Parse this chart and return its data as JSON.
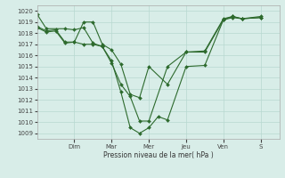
{
  "background_color": "#d8ede8",
  "grid_color": "#b8d8d0",
  "line_color": "#2d6a2d",
  "marker_color": "#2d6a2d",
  "xlabel": "Pression niveau de la mer( hPa )",
  "ylim": [
    1008.5,
    1020.5
  ],
  "yticks": [
    1009,
    1010,
    1011,
    1012,
    1013,
    1014,
    1015,
    1016,
    1017,
    1018,
    1019,
    1020
  ],
  "day_labels": [
    "Dim",
    "Mar",
    "Mer",
    "Jeu",
    "Ven",
    "S"
  ],
  "day_positions": [
    2,
    4,
    6,
    8,
    10,
    12
  ],
  "xlim": [
    0,
    13
  ],
  "series1_x": [
    0.0,
    0.5,
    1.5,
    2.0,
    2.5,
    3.0,
    3.5,
    4.0,
    4.5,
    5.0,
    5.5,
    6.0,
    6.5,
    7.0,
    8.0,
    9.0,
    10.0,
    10.5,
    11.0,
    12.0
  ],
  "series1_y": [
    1019.7,
    1018.4,
    1018.4,
    1018.3,
    1018.5,
    1017.1,
    1016.8,
    1015.5,
    1012.7,
    1009.5,
    1009.0,
    1009.5,
    1010.5,
    1010.2,
    1015.0,
    1015.1,
    1019.2,
    1019.4,
    1019.3,
    1019.4
  ],
  "series2_x": [
    0.0,
    0.5,
    1.0,
    1.5,
    2.0,
    2.5,
    3.0,
    3.5,
    4.0,
    4.5,
    5.0,
    5.5,
    6.0,
    7.0,
    8.0,
    9.0,
    10.0,
    10.5,
    11.0,
    12.0
  ],
  "series2_y": [
    1018.5,
    1018.1,
    1018.2,
    1017.1,
    1017.2,
    1019.0,
    1019.0,
    1017.0,
    1016.5,
    1015.2,
    1012.5,
    1012.2,
    1015.0,
    1013.4,
    1016.3,
    1016.4,
    1019.3,
    1019.5,
    1019.3,
    1019.5
  ],
  "series3_x": [
    0.0,
    0.5,
    1.0,
    1.5,
    2.0,
    2.5,
    3.0,
    3.5,
    4.0,
    4.5,
    5.0,
    5.5,
    6.0,
    7.0,
    8.0,
    9.0,
    10.0,
    10.5,
    11.0,
    12.0
  ],
  "series3_y": [
    1018.6,
    1018.2,
    1018.3,
    1017.2,
    1017.2,
    1017.0,
    1017.0,
    1016.8,
    1015.3,
    1013.4,
    1012.3,
    1010.1,
    1010.1,
    1015.0,
    1016.3,
    1016.3,
    1019.2,
    1019.5,
    1019.3,
    1019.4
  ]
}
